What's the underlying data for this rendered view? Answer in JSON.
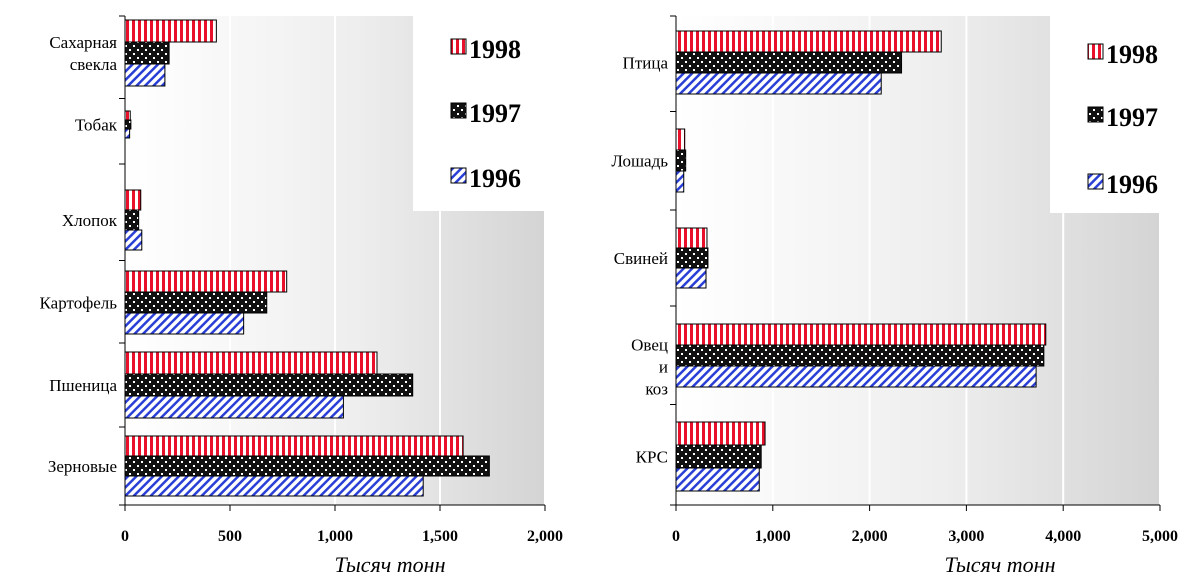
{
  "colors": {
    "s1998": "#e8102a",
    "s1997": "#111111",
    "s1996": "#2a3fd6"
  },
  "chart_data": [
    {
      "type": "bar",
      "orientation": "horizontal",
      "categories": [
        "Сахарная свекла",
        "Тобак",
        "Хлопок",
        "Картофель",
        "Пшеница",
        "Зерновые"
      ],
      "series": [
        {
          "name": "1998",
          "values": [
            435,
            25,
            75,
            770,
            1200,
            1610
          ]
        },
        {
          "name": "1997",
          "values": [
            210,
            28,
            65,
            675,
            1370,
            1735
          ]
        },
        {
          "name": "1996",
          "values": [
            190,
            22,
            80,
            565,
            1040,
            1420
          ]
        }
      ],
      "xlabel": "Тысяч тонн",
      "xlim": [
        0,
        2000
      ],
      "xticks": [
        0,
        500,
        1000,
        1500,
        2000
      ],
      "xtick_labels": [
        "0",
        "500",
        "1,000",
        "1,500",
        "2,000"
      ],
      "legend_position": "top-right",
      "grid": true
    },
    {
      "type": "bar",
      "orientation": "horizontal",
      "categories": [
        "Птица",
        "Лошадь",
        "Свиней",
        "Овец и коз",
        "КРС"
      ],
      "series": [
        {
          "name": "1998",
          "values": [
            2740,
            90,
            320,
            3820,
            920
          ]
        },
        {
          "name": "1997",
          "values": [
            2330,
            100,
            330,
            3800,
            880
          ]
        },
        {
          "name": "1996",
          "values": [
            2120,
            80,
            310,
            3720,
            860
          ]
        }
      ],
      "xlabel": "Тысяч тонн",
      "xlim": [
        0,
        5000
      ],
      "xticks": [
        0,
        1000,
        2000,
        3000,
        4000,
        5000
      ],
      "xtick_labels": [
        "0",
        "1,000",
        "2,000",
        "3,000",
        "4,000",
        "5,000"
      ],
      "legend_position": "top-right",
      "grid": true
    }
  ]
}
